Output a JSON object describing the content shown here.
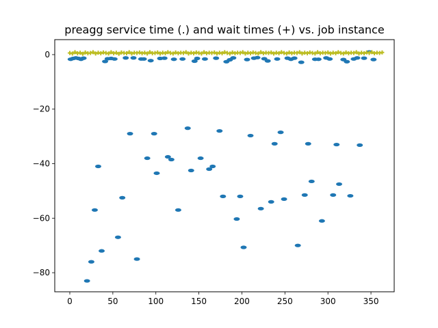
{
  "chart_data": {
    "type": "scatter",
    "title": "preagg service time (.) and wait times (+) vs. job instance",
    "xlabel": "",
    "ylabel": "",
    "xlim": [
      -17.5,
      377
    ],
    "ylim": [
      -87,
      5.5
    ],
    "x_ticks": [
      0,
      50,
      100,
      150,
      200,
      250,
      300,
      350
    ],
    "y_ticks": [
      -80,
      -60,
      -40,
      -20,
      0
    ],
    "grid": false,
    "colors": {
      "service": "#1f77b4",
      "wait": "#bcbd22"
    },
    "series": [
      {
        "marker": ".",
        "color": "#1f77b4",
        "points": [
          [
            1,
            -1.7
          ],
          [
            4,
            -1.4
          ],
          [
            7,
            -1.2
          ],
          [
            10,
            -1.4
          ],
          [
            13,
            -1.7
          ],
          [
            16,
            -1.3
          ],
          [
            20,
            -83
          ],
          [
            25,
            -76
          ],
          [
            29,
            -57
          ],
          [
            33,
            -41
          ],
          [
            37,
            -72
          ],
          [
            41,
            -2.5
          ],
          [
            44,
            -1.5
          ],
          [
            48,
            -1.4
          ],
          [
            52,
            -1.6
          ],
          [
            56,
            -67
          ],
          [
            61,
            -52.5
          ],
          [
            65,
            -1.2
          ],
          [
            70,
            -29
          ],
          [
            74,
            -1.2
          ],
          [
            78,
            -75
          ],
          [
            83,
            -1.6
          ],
          [
            86,
            -1.6
          ],
          [
            90,
            -38
          ],
          [
            94,
            -2.2
          ],
          [
            98,
            -29
          ],
          [
            101,
            -43.5
          ],
          [
            105,
            -1.4
          ],
          [
            110,
            -1.3
          ],
          [
            114,
            -37.5
          ],
          [
            118,
            -38.5
          ],
          [
            121,
            -1.7
          ],
          [
            126,
            -57
          ],
          [
            131,
            -1.6
          ],
          [
            137,
            -27
          ],
          [
            141,
            -42.5
          ],
          [
            145,
            -2.4
          ],
          [
            148,
            -1.4
          ],
          [
            152,
            -38
          ],
          [
            157,
            -1.6
          ],
          [
            162,
            -42
          ],
          [
            166,
            -41
          ],
          [
            170,
            -1.3
          ],
          [
            174,
            -28
          ],
          [
            178,
            -52
          ],
          [
            182,
            -2.6
          ],
          [
            186,
            -1.9
          ],
          [
            190,
            -1.2
          ],
          [
            194,
            -60.3
          ],
          [
            198,
            -52
          ],
          [
            202,
            -70.7
          ],
          [
            206,
            -1.8
          ],
          [
            210,
            -29.7
          ],
          [
            214,
            -1.3
          ],
          [
            218,
            -1.1
          ],
          [
            222,
            -56.5
          ],
          [
            226,
            -1.5
          ],
          [
            230,
            -2.3
          ],
          [
            234,
            -54
          ],
          [
            238,
            -32.7
          ],
          [
            241,
            -1.6
          ],
          [
            245,
            -28.5
          ],
          [
            249,
            -53
          ],
          [
            253,
            -1.3
          ],
          [
            257,
            -1.7
          ],
          [
            261,
            -1.3
          ],
          [
            265,
            -70
          ],
          [
            269,
            -2.8
          ],
          [
            273,
            -51.5
          ],
          [
            277,
            -32.7
          ],
          [
            281,
            -46.5
          ],
          [
            285,
            -1.7
          ],
          [
            289,
            -1.7
          ],
          [
            293,
            -61
          ],
          [
            298,
            -1.2
          ],
          [
            302,
            -1.6
          ],
          [
            306,
            -51.5
          ],
          [
            310,
            -33
          ],
          [
            313,
            -47.5
          ],
          [
            318,
            -1.8
          ],
          [
            322,
            -2.6
          ],
          [
            326,
            -51.8
          ],
          [
            330,
            -1.6
          ],
          [
            334,
            -1.2
          ],
          [
            337,
            -33.2
          ],
          [
            342,
            -1.3
          ],
          [
            348,
            1
          ],
          [
            353,
            -1.8
          ]
        ]
      },
      {
        "marker": "+",
        "color": "#bcbd22",
        "points": [
          [
            0,
            0.6
          ],
          [
            3,
            0.4
          ],
          [
            6,
            0.9
          ],
          [
            9,
            0.5
          ],
          [
            12,
            0.7
          ],
          [
            15,
            0.3
          ],
          [
            18,
            0.8
          ],
          [
            21,
            0.5
          ],
          [
            24,
            0.6
          ],
          [
            27,
            0.9
          ],
          [
            30,
            0.4
          ],
          [
            33,
            0.7
          ],
          [
            36,
            0.5
          ],
          [
            39,
            0.8
          ],
          [
            42,
            0.6
          ],
          [
            45,
            0.4
          ],
          [
            48,
            0.9
          ],
          [
            51,
            0.5
          ],
          [
            54,
            0.7
          ],
          [
            57,
            0.3
          ],
          [
            60,
            0.8
          ],
          [
            63,
            0.6
          ],
          [
            66,
            0.5
          ],
          [
            69,
            0.9
          ],
          [
            72,
            0.4
          ],
          [
            75,
            0.7
          ],
          [
            78,
            0.6
          ],
          [
            81,
            0.8
          ],
          [
            84,
            0.5
          ],
          [
            87,
            0.7
          ],
          [
            90,
            0.4
          ],
          [
            93,
            0.9
          ],
          [
            96,
            0.5
          ],
          [
            99,
            0.6
          ],
          [
            102,
            0.8
          ],
          [
            105,
            0.4
          ],
          [
            108,
            0.7
          ],
          [
            111,
            0.5
          ],
          [
            114,
            0.9
          ],
          [
            117,
            0.6
          ],
          [
            120,
            0.4
          ],
          [
            123,
            0.8
          ],
          [
            126,
            0.5
          ],
          [
            129,
            0.7
          ],
          [
            132,
            0.6
          ],
          [
            135,
            0.9
          ],
          [
            138,
            0.4
          ],
          [
            141,
            0.7
          ],
          [
            144,
            0.5
          ],
          [
            147,
            0.8
          ],
          [
            150,
            0.6
          ],
          [
            153,
            0.4
          ],
          [
            156,
            0.9
          ],
          [
            159,
            0.5
          ],
          [
            162,
            0.7
          ],
          [
            165,
            0.6
          ],
          [
            168,
            0.8
          ],
          [
            171,
            0.4
          ],
          [
            174,
            0.7
          ],
          [
            177,
            0.5
          ],
          [
            180,
            0.9
          ],
          [
            183,
            0.6
          ],
          [
            186,
            0.4
          ],
          [
            189,
            0.8
          ],
          [
            192,
            0.5
          ],
          [
            195,
            0.7
          ],
          [
            198,
            0.6
          ],
          [
            201,
            0.9
          ],
          [
            204,
            0.4
          ],
          [
            207,
            0.7
          ],
          [
            210,
            0.5
          ],
          [
            213,
            0.8
          ],
          [
            216,
            0.6
          ],
          [
            219,
            0.4
          ],
          [
            222,
            0.9
          ],
          [
            225,
            0.5
          ],
          [
            228,
            0.7
          ],
          [
            231,
            0.6
          ],
          [
            234,
            0.8
          ],
          [
            237,
            0.4
          ],
          [
            240,
            0.7
          ],
          [
            243,
            0.5
          ],
          [
            246,
            0.9
          ],
          [
            249,
            0.6
          ],
          [
            252,
            0.4
          ],
          [
            255,
            0.8
          ],
          [
            258,
            0.5
          ],
          [
            261,
            0.7
          ],
          [
            264,
            0.6
          ],
          [
            267,
            0.9
          ],
          [
            270,
            0.4
          ],
          [
            273,
            0.7
          ],
          [
            276,
            0.5
          ],
          [
            279,
            0.8
          ],
          [
            282,
            0.6
          ],
          [
            285,
            0.4
          ],
          [
            288,
            0.9
          ],
          [
            291,
            0.5
          ],
          [
            294,
            0.7
          ],
          [
            297,
            0.6
          ],
          [
            300,
            0.8
          ],
          [
            303,
            0.4
          ],
          [
            306,
            0.7
          ],
          [
            309,
            0.5
          ],
          [
            312,
            0.9
          ],
          [
            315,
            0.6
          ],
          [
            318,
            0.4
          ],
          [
            321,
            0.8
          ],
          [
            324,
            0.5
          ],
          [
            327,
            0.7
          ],
          [
            330,
            0.6
          ],
          [
            333,
            0.9
          ],
          [
            336,
            0.4
          ],
          [
            339,
            0.7
          ],
          [
            342,
            0.5
          ],
          [
            345,
            0.8
          ],
          [
            348,
            0.6
          ],
          [
            351,
            0.9
          ],
          [
            354,
            0.5
          ],
          [
            357,
            0.7
          ],
          [
            360,
            0.6
          ],
          [
            363,
            0.8
          ]
        ]
      }
    ]
  }
}
